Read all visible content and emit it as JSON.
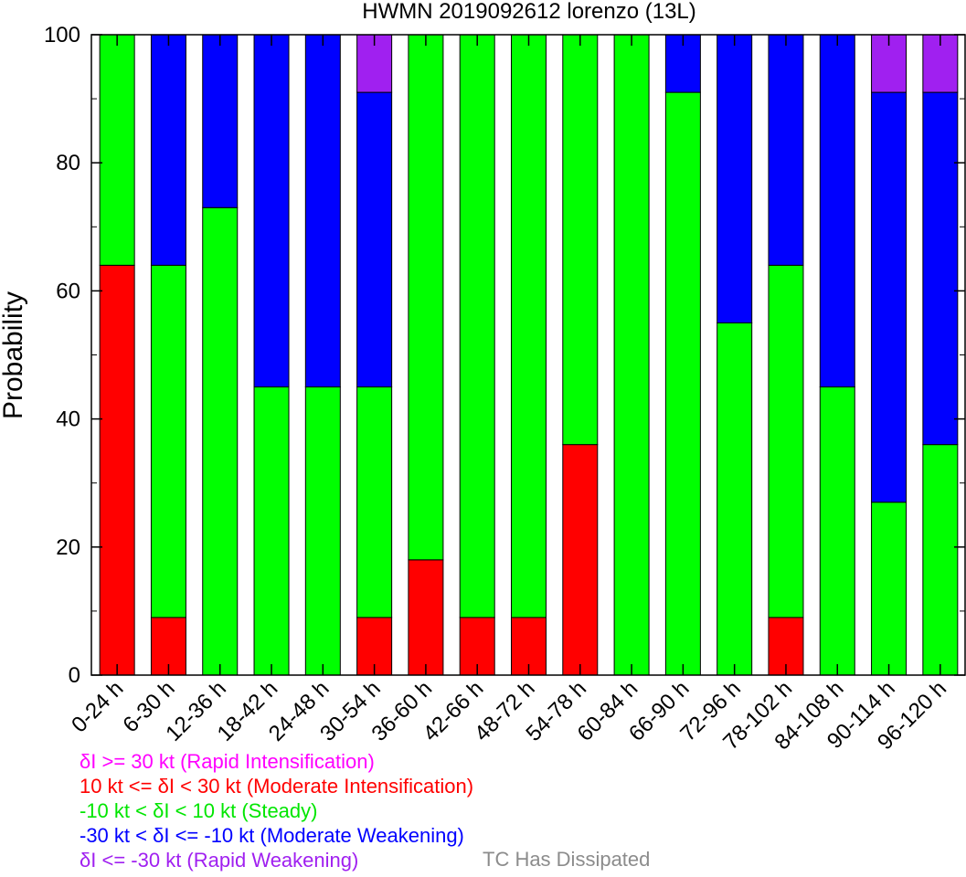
{
  "chart_data": {
    "type": "bar",
    "stacked": true,
    "title": "HWMN 2019092612 lorenzo (13L)",
    "ylabel": "Probability",
    "xlabel": "",
    "ylim": [
      0,
      100
    ],
    "yticks": [
      0,
      20,
      40,
      60,
      80,
      100
    ],
    "categories": [
      "0-24 h",
      "6-30 h",
      "12-36 h",
      "18-42 h",
      "24-48 h",
      "30-54 h",
      "36-60 h",
      "42-66 h",
      "48-72 h",
      "54-78 h",
      "60-84 h",
      "66-90 h",
      "72-96 h",
      "78-102 h",
      "84-108 h",
      "90-114 h",
      "96-120 h"
    ],
    "series": [
      {
        "name": "Rapid Intensification",
        "color": "#ff00ff",
        "values": [
          0,
          0,
          0,
          0,
          0,
          0,
          0,
          0,
          0,
          0,
          0,
          0,
          0,
          0,
          0,
          0,
          0
        ]
      },
      {
        "name": "Moderate Intensification",
        "color": "#ff0000",
        "values": [
          64,
          9,
          0,
          0,
          0,
          9,
          18,
          9,
          9,
          36,
          0,
          0,
          0,
          9,
          0,
          0,
          0
        ]
      },
      {
        "name": "Steady",
        "color": "#00ff00",
        "values": [
          36,
          55,
          73,
          45,
          45,
          36,
          82,
          91,
          91,
          64,
          100,
          91,
          55,
          55,
          45,
          27,
          36
        ]
      },
      {
        "name": "Moderate Weakening",
        "color": "#0000ff",
        "values": [
          0,
          36,
          27,
          55,
          55,
          46,
          0,
          0,
          0,
          0,
          0,
          9,
          45,
          36,
          55,
          64,
          55
        ]
      },
      {
        "name": "Rapid Weakening",
        "color": "#a020f0",
        "values": [
          0,
          0,
          0,
          0,
          0,
          9,
          0,
          0,
          0,
          0,
          0,
          0,
          0,
          0,
          0,
          9,
          9
        ]
      }
    ],
    "legend": {
      "placement": "bottom-left",
      "items": [
        {
          "text": "δI >= 30 kt (Rapid Intensification)",
          "color": "#ff00ff"
        },
        {
          "text": "10 kt <= δI < 30 kt (Moderate Intensification)",
          "color": "#ff0000"
        },
        {
          "text": "-10 kt < δI < 10 kt (Steady)",
          "color": "#00e600"
        },
        {
          "text": "-30 kt < δI <= -10 kt (Moderate Weakening)",
          "color": "#0000ff"
        },
        {
          "text": "δI <= -30 kt (Rapid Weakening)",
          "color": "#a020f0"
        }
      ],
      "dissipated": {
        "text": "TC Has Dissipated",
        "color": "#8c8c8c"
      }
    }
  }
}
